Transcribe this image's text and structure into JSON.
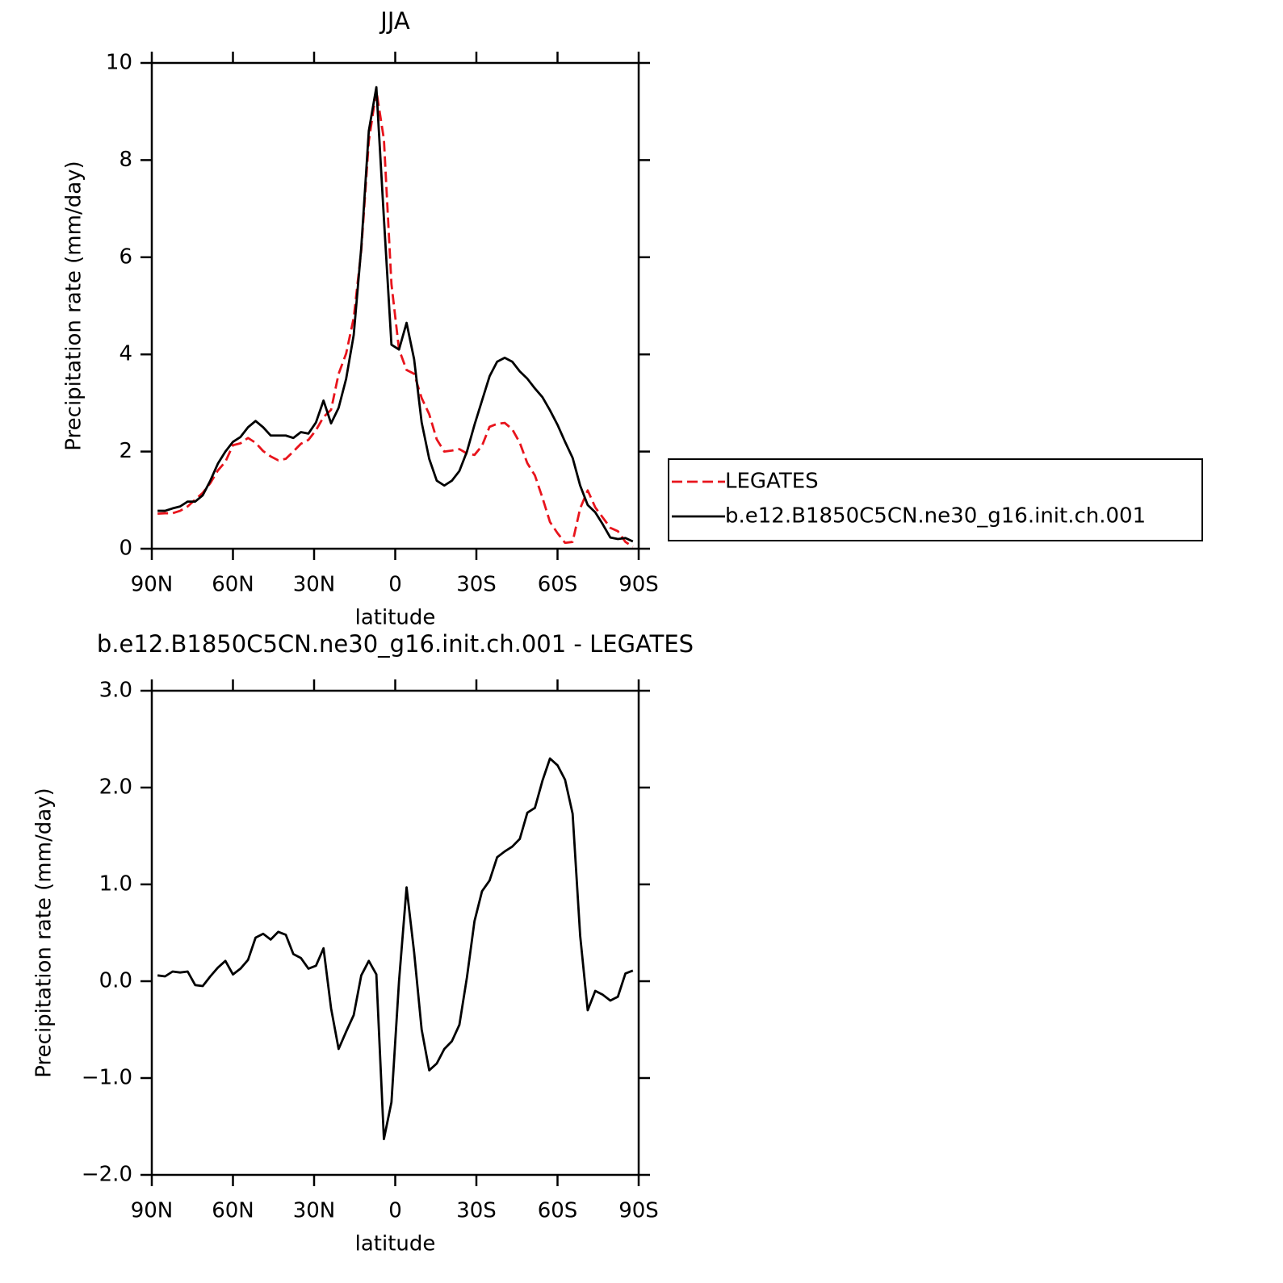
{
  "chart_data": [
    {
      "type": "line",
      "title": "JJA",
      "xlabel": "latitude",
      "ylabel": "Precipitation rate (mm/day)",
      "x": [
        87.86,
        85.1,
        82.31,
        79.53,
        76.74,
        73.95,
        71.16,
        68.37,
        65.58,
        62.79,
        60,
        57.21,
        54.42,
        51.63,
        48.84,
        46.05,
        43.26,
        40.47,
        37.67,
        34.88,
        32.09,
        29.3,
        26.51,
        23.72,
        20.93,
        18.14,
        15.35,
        12.56,
        9.77,
        6.98,
        4.19,
        1.4,
        -1.4,
        -4.19,
        -6.98,
        -9.77,
        -12.56,
        -15.35,
        -18.14,
        -20.93,
        -23.72,
        -26.51,
        -29.3,
        -32.09,
        -34.88,
        -37.67,
        -40.47,
        -43.26,
        -46.05,
        -48.84,
        -51.63,
        -54.42,
        -57.21,
        -60,
        -62.79,
        -65.58,
        -68.37,
        -71.16,
        -73.95,
        -76.74,
        -79.53,
        -82.31,
        -85.1,
        -87.86
      ],
      "series": [
        {
          "name": "LEGATES",
          "color": "#e8141c",
          "linestyle": "dashed",
          "values": [
            0.72,
            0.73,
            0.73,
            0.78,
            0.87,
            1.01,
            1.15,
            1.35,
            1.61,
            1.79,
            2.13,
            2.17,
            2.28,
            2.18,
            2.01,
            1.9,
            1.82,
            1.85,
            2.0,
            2.16,
            2.24,
            2.44,
            2.71,
            2.86,
            3.6,
            4.02,
            4.75,
            6.14,
            8.39,
            9.43,
            8.43,
            5.45,
            4.1,
            3.68,
            3.6,
            3.1,
            2.77,
            2.25,
            2.0,
            2.02,
            2.05,
            1.96,
            1.93,
            2.12,
            2.51,
            2.57,
            2.59,
            2.46,
            2.18,
            1.76,
            1.51,
            1.05,
            0.55,
            0.32,
            0.12,
            0.14,
            0.83,
            1.2,
            0.85,
            0.64,
            0.43,
            0.36,
            0.14,
            0.04
          ]
        },
        {
          "name": "b.e12.B1850C5CN.ne30_g16.init.ch.001",
          "color": "#000000",
          "linestyle": "solid",
          "values": [
            0.78,
            0.78,
            0.83,
            0.87,
            0.97,
            0.97,
            1.1,
            1.4,
            1.75,
            2.0,
            2.2,
            2.3,
            2.5,
            2.63,
            2.5,
            2.33,
            2.33,
            2.33,
            2.28,
            2.4,
            2.37,
            2.6,
            3.05,
            2.58,
            2.9,
            3.5,
            4.4,
            6.2,
            8.6,
            9.5,
            6.8,
            4.2,
            4.1,
            4.65,
            3.9,
            2.6,
            1.85,
            1.4,
            1.3,
            1.4,
            1.6,
            2.0,
            2.55,
            3.05,
            3.55,
            3.85,
            3.93,
            3.85,
            3.65,
            3.5,
            3.3,
            3.12,
            2.85,
            2.55,
            2.2,
            1.87,
            1.3,
            0.9,
            0.75,
            0.5,
            0.23,
            0.2,
            0.22,
            0.15
          ]
        }
      ],
      "xlim": [
        90,
        -90
      ],
      "xticks": [
        {
          "value": 90,
          "label": "90N"
        },
        {
          "value": 60,
          "label": "60N"
        },
        {
          "value": 30,
          "label": "30N"
        },
        0,
        {
          "value": -30,
          "label": "30S"
        },
        {
          "value": -60,
          "label": "60S"
        },
        {
          "value": -90,
          "label": "90S"
        }
      ],
      "ylim": [
        0,
        10
      ],
      "yticks": [
        0,
        2,
        4,
        6,
        8,
        10
      ],
      "legend": "outside-right"
    },
    {
      "type": "line",
      "title": "b.e12.B1850C5CN.ne30_g16.init.ch.001 - LEGATES",
      "xlabel": "latitude",
      "ylabel": "Precipitation rate (mm/day)",
      "x": [
        87.86,
        85.1,
        82.31,
        79.53,
        76.74,
        73.95,
        71.16,
        68.37,
        65.58,
        62.79,
        60,
        57.21,
        54.42,
        51.63,
        48.84,
        46.05,
        43.26,
        40.47,
        37.67,
        34.88,
        32.09,
        29.3,
        26.51,
        23.72,
        20.93,
        18.14,
        15.35,
        12.56,
        9.77,
        6.98,
        4.19,
        1.4,
        -1.4,
        -4.19,
        -6.98,
        -9.77,
        -12.56,
        -15.35,
        -18.14,
        -20.93,
        -23.72,
        -26.51,
        -29.3,
        -32.09,
        -34.88,
        -37.67,
        -40.47,
        -43.26,
        -46.05,
        -48.84,
        -51.63,
        -54.42,
        -57.21,
        -60,
        -62.79,
        -65.58,
        -68.37,
        -71.16,
        -73.95,
        -76.74,
        -79.53,
        -82.31,
        -85.1,
        -87.86
      ],
      "series": [
        {
          "color": "#000000",
          "linestyle": "solid",
          "values": [
            0.06,
            0.05,
            0.1,
            0.09,
            0.1,
            -0.04,
            -0.05,
            0.05,
            0.14,
            0.21,
            0.07,
            0.13,
            0.22,
            0.45,
            0.49,
            0.43,
            0.51,
            0.48,
            0.28,
            0.24,
            0.13,
            0.16,
            0.34,
            -0.28,
            -0.7,
            -0.52,
            -0.35,
            0.06,
            0.21,
            0.07,
            -1.63,
            -1.25,
            0.0,
            0.97,
            0.3,
            -0.5,
            -0.92,
            -0.85,
            -0.7,
            -0.62,
            -0.45,
            0.04,
            0.62,
            0.93,
            1.04,
            1.28,
            1.34,
            1.39,
            1.47,
            1.74,
            1.79,
            2.07,
            2.3,
            2.23,
            2.08,
            1.73,
            0.47,
            -0.3,
            -0.1,
            -0.14,
            -0.2,
            -0.16,
            0.08,
            0.11
          ]
        }
      ],
      "xlim": [
        90,
        -90
      ],
      "xticks": [
        {
          "value": 90,
          "label": "90N"
        },
        {
          "value": 60,
          "label": "60N"
        },
        {
          "value": 30,
          "label": "30N"
        },
        0,
        {
          "value": -30,
          "label": "30S"
        },
        {
          "value": -60,
          "label": "60S"
        },
        {
          "value": -90,
          "label": "90S"
        }
      ],
      "ylim": [
        -2,
        3
      ],
      "yticks": [
        {
          "value": -2,
          "label": "−2.0"
        },
        {
          "value": -1,
          "label": "−1.0"
        },
        {
          "value": 0,
          "label": "0.0"
        },
        {
          "value": 1,
          "label": "1.0"
        },
        {
          "value": 2,
          "label": "2.0"
        },
        {
          "value": 3,
          "label": "3.0"
        }
      ]
    }
  ]
}
